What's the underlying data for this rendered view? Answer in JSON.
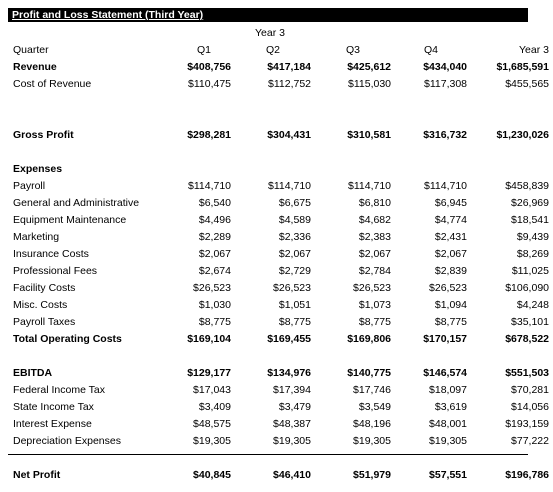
{
  "title": "Profit and Loss Statement (Third Year)",
  "year_header": "Year 3",
  "columns": [
    "Quarter",
    "Q1",
    "Q2",
    "Q3",
    "Q4",
    "Year 3"
  ],
  "rows": [
    {
      "label": "Revenue",
      "bold": true,
      "values": [
        "$408,756",
        "$417,184",
        "$425,612",
        "$434,040",
        "$1,685,591"
      ]
    },
    {
      "label": "Cost of Revenue",
      "bold": false,
      "values": [
        "$110,475",
        "$112,752",
        "$115,030",
        "$117,308",
        "$455,565"
      ]
    },
    {
      "spacer": true
    },
    {
      "spacer": true
    },
    {
      "label": "Gross Profit",
      "bold": true,
      "values": [
        "$298,281",
        "$304,431",
        "$310,581",
        "$316,732",
        "$1,230,026"
      ]
    },
    {
      "spacer": true
    },
    {
      "label": "Expenses",
      "bold": true,
      "values": [
        "",
        "",
        "",
        "",
        ""
      ]
    },
    {
      "label": "Payroll",
      "bold": false,
      "values": [
        "$114,710",
        "$114,710",
        "$114,710",
        "$114,710",
        "$458,839"
      ]
    },
    {
      "label": "General and Administrative",
      "bold": false,
      "values": [
        "$6,540",
        "$6,675",
        "$6,810",
        "$6,945",
        "$26,969"
      ]
    },
    {
      "label": "Equipment Maintenance",
      "bold": false,
      "values": [
        "$4,496",
        "$4,589",
        "$4,682",
        "$4,774",
        "$18,541"
      ]
    },
    {
      "label": "Marketing",
      "bold": false,
      "values": [
        "$2,289",
        "$2,336",
        "$2,383",
        "$2,431",
        "$9,439"
      ]
    },
    {
      "label": "Insurance Costs",
      "bold": false,
      "values": [
        "$2,067",
        "$2,067",
        "$2,067",
        "$2,067",
        "$8,269"
      ]
    },
    {
      "label": "Professional Fees",
      "bold": false,
      "values": [
        "$2,674",
        "$2,729",
        "$2,784",
        "$2,839",
        "$11,025"
      ]
    },
    {
      "label": "Facility Costs",
      "bold": false,
      "values": [
        "$26,523",
        "$26,523",
        "$26,523",
        "$26,523",
        "$106,090"
      ]
    },
    {
      "label": "Misc. Costs",
      "bold": false,
      "values": [
        "$1,030",
        "$1,051",
        "$1,073",
        "$1,094",
        "$4,248"
      ]
    },
    {
      "label": "Payroll Taxes",
      "bold": false,
      "values": [
        "$8,775",
        "$8,775",
        "$8,775",
        "$8,775",
        "$35,101"
      ]
    },
    {
      "label": "Total Operating Costs",
      "bold": true,
      "values": [
        "$169,104",
        "$169,455",
        "$169,806",
        "$170,157",
        "$678,522"
      ]
    },
    {
      "spacer": true
    },
    {
      "label": "EBITDA",
      "bold": true,
      "values": [
        "$129,177",
        "$134,976",
        "$140,775",
        "$146,574",
        "$551,503"
      ]
    },
    {
      "label": "Federal Income Tax",
      "bold": false,
      "values": [
        "$17,043",
        "$17,394",
        "$17,746",
        "$18,097",
        "$70,281"
      ]
    },
    {
      "label": "State Income Tax",
      "bold": false,
      "values": [
        "$3,409",
        "$3,479",
        "$3,549",
        "$3,619",
        "$14,056"
      ]
    },
    {
      "label": "Interest Expense",
      "bold": false,
      "values": [
        "$48,575",
        "$48,387",
        "$48,196",
        "$48,001",
        "$193,159"
      ]
    },
    {
      "label": "Depreciation Expenses",
      "bold": false,
      "values": [
        "$19,305",
        "$19,305",
        "$19,305",
        "$19,305",
        "$77,222"
      ]
    },
    {
      "spacer": true
    },
    {
      "label": "Net Profit",
      "bold": true,
      "values": [
        "$40,845",
        "$46,410",
        "$51,979",
        "$57,551",
        "$196,786"
      ]
    }
  ]
}
